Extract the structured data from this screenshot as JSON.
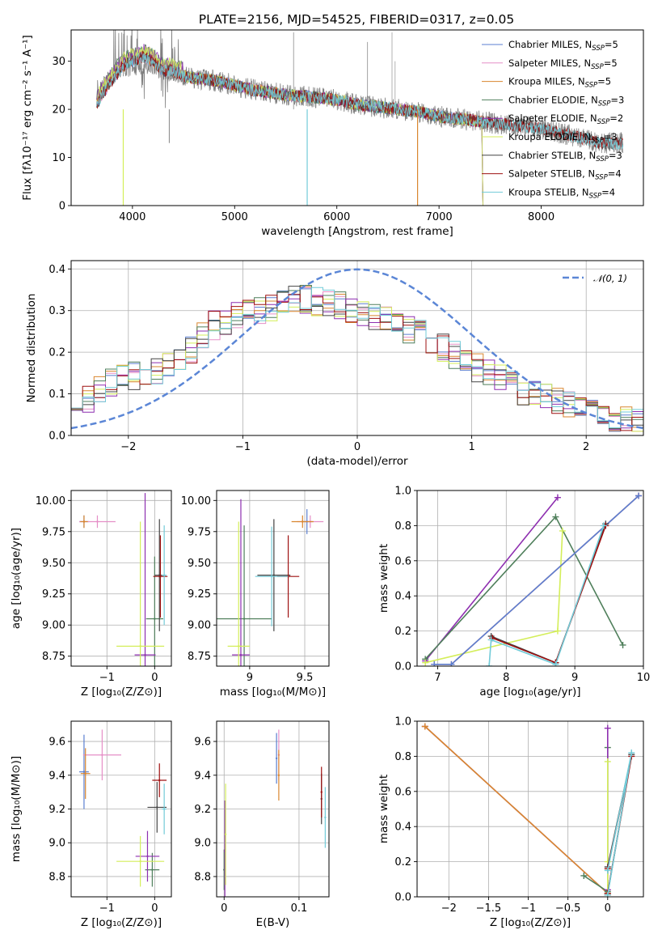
{
  "figure_title": "PLATE=2156, MJD=54525, FIBERID=0317, z=0.05",
  "colors": {
    "Chabrier MILES": "#5b7fd0",
    "Salpeter MILES": "#e58fc7",
    "Kroupa MILES": "#d9862e",
    "Chabrier ELODIE": "#4f7f5b",
    "Salpeter ELODIE": "#8e2fb0",
    "Kroupa ELODIE": "#d4ee5a",
    "Chabrier STELIB": "#444444",
    "Salpeter STELIB": "#9e1010",
    "Kroupa STELIB": "#72cbd8"
  },
  "chart_data": [
    {
      "id": "spectrum",
      "type": "line",
      "xlabel": "wavelength [Angstrom, rest frame]",
      "ylabel": "Flux [fλ10⁻¹⁷ erg cm⁻² s⁻¹ A⁻¹]",
      "xlim": [
        3400,
        9000
      ],
      "ylim": [
        0,
        36.5
      ],
      "xticks": [
        4000,
        5000,
        6000,
        7000,
        8000
      ],
      "yticks": [
        0,
        10,
        20,
        30
      ],
      "grid": false,
      "legend": [
        "Chabrier MILES, N_SSP=5",
        "Salpeter MILES, N_SSP=5",
        "Kroupa MILES, N_SSP=5",
        "Chabrier ELODIE, N_SSP=3",
        "Salpeter ELODIE, N_SSP=2",
        "Kroupa ELODIE, N_SSP=3",
        "Chabrier STELIB, N_SSP=3",
        "Salpeter STELIB, N_SSP=4",
        "Kroupa STELIB, N_SSP=4"
      ],
      "legend_location": "upper right",
      "data_continuum": {
        "x": [
          3650,
          3700,
          3800,
          3900,
          4000,
          4100,
          4200,
          4300,
          4400,
          4500,
          4600,
          4800,
          5000,
          5200,
          5500,
          5800,
          6000,
          6200,
          6400,
          6600,
          6800,
          7000,
          7200,
          7400,
          7600,
          7800,
          8000,
          8200,
          8400,
          8600,
          8800
        ],
        "y": [
          22,
          24,
          27,
          29,
          29,
          29.5,
          29.5,
          28,
          28,
          27,
          26.5,
          26,
          25,
          24,
          23,
          22.5,
          22,
          21,
          20.5,
          20,
          19.5,
          18.5,
          18,
          17.5,
          17,
          16.5,
          16,
          15,
          14,
          13,
          13
        ]
      },
      "model_continuum": {
        "x": [
          3650,
          3700,
          3800,
          3900,
          4000,
          4100,
          4200,
          4300,
          4400,
          4500,
          4600,
          4800,
          5000,
          5200,
          5500,
          5800,
          6000,
          6200,
          6400,
          6600,
          6800,
          7000,
          7200,
          7400
        ],
        "y": [
          21,
          23,
          26,
          29,
          30,
          31,
          30,
          28,
          28,
          27,
          26.5,
          26,
          25,
          24,
          23,
          22.5,
          22,
          21,
          20.5,
          20,
          19.5,
          18.5,
          18,
          17.5
        ]
      }
    },
    {
      "id": "residuals",
      "type": "histogram",
      "xlabel": "(data-model)/error",
      "ylabel": "Normed distribution",
      "xlim": [
        -2.5,
        2.5
      ],
      "ylim": [
        0,
        0.42
      ],
      "xticks": [
        -2,
        -1,
        0,
        1,
        2
      ],
      "yticks": [
        0.0,
        0.1,
        0.2,
        0.3,
        0.4
      ],
      "grid": true,
      "bin_edges_step": 0.1,
      "envelope": {
        "x": [
          -2.45,
          -2.2,
          -2.0,
          -1.8,
          -1.5,
          -1.3,
          -1.0,
          -0.8,
          -0.5,
          -0.3,
          0.0,
          0.3,
          0.6,
          0.8,
          1.0,
          1.3,
          1.5,
          1.8,
          2.0,
          2.3,
          2.45
        ],
        "y": [
          0.07,
          0.12,
          0.14,
          0.15,
          0.19,
          0.26,
          0.29,
          0.3,
          0.33,
          0.32,
          0.3,
          0.27,
          0.24,
          0.2,
          0.17,
          0.13,
          0.1,
          0.08,
          0.06,
          0.04,
          0.035
        ]
      },
      "reference_curve": {
        "name": "𝒩(0, 1)",
        "mean": 0,
        "sigma": 1,
        "style": "dashed"
      },
      "legend_location": "upper right"
    },
    {
      "id": "age-vs-Z",
      "type": "scatter",
      "xlabel": "Z [log₁₀(Z/Z⊙)]",
      "ylabel": "age  [log₁₀(age/yr)]",
      "xlim": [
        -1.75,
        0.35
      ],
      "ylim": [
        8.67,
        10.08
      ],
      "xticks": [
        -1,
        0
      ],
      "yticks": [
        8.75,
        9.0,
        9.25,
        9.5,
        9.75,
        10.0
      ],
      "grid": true,
      "points": [
        {
          "model": "Chabrier MILES",
          "x": -1.48,
          "y": 9.83,
          "xerr": 0.1,
          "yerr": 0.05
        },
        {
          "model": "Salpeter MILES",
          "x": -1.2,
          "y": 9.83,
          "xerr": 0.38,
          "yerr": 0.05
        },
        {
          "model": "Kroupa MILES",
          "x": -1.48,
          "y": 9.83,
          "xerr": 0.08,
          "yerr": 0.05
        },
        {
          "model": "Chabrier ELODIE",
          "x": 0.0,
          "y": 9.05,
          "xerr": 0.18,
          "yerr": 0.5
        },
        {
          "model": "Salpeter ELODIE",
          "x": -0.2,
          "y": 8.76,
          "xerr": 0.22,
          "yerr": 1.3
        },
        {
          "model": "Kroupa ELODIE",
          "x": -0.3,
          "y": 8.83,
          "xerr": 0.5,
          "yerr": 1.0
        },
        {
          "model": "Chabrier STELIB",
          "x": 0.1,
          "y": 9.4,
          "xerr": 0.1,
          "yerr": 0.45
        },
        {
          "model": "Salpeter STELIB",
          "x": 0.12,
          "y": 9.39,
          "xerr": 0.15,
          "yerr": 0.33
        },
        {
          "model": "Kroupa STELIB",
          "x": 0.2,
          "y": 9.4,
          "xerr": 0.05,
          "yerr": 0.4
        }
      ]
    },
    {
      "id": "age-vs-mass",
      "type": "scatter",
      "xlabel": "mass [log₁₀(M/M⊙)]",
      "ylabel": "",
      "xlim": [
        8.7,
        9.72
      ],
      "ylim": [
        8.67,
        10.08
      ],
      "xticks": [
        9.0,
        9.5
      ],
      "yticks": [
        8.75,
        9.0,
        9.25,
        9.5,
        9.75,
        10.0
      ],
      "grid": true,
      "points": [
        {
          "model": "Chabrier MILES",
          "x": 9.52,
          "y": 9.83,
          "xerr": 0.05,
          "yerr": 0.1
        },
        {
          "model": "Salpeter MILES",
          "x": 9.55,
          "y": 9.83,
          "xerr": 0.12,
          "yerr": 0.05
        },
        {
          "model": "Kroupa MILES",
          "x": 9.48,
          "y": 9.83,
          "xerr": 0.1,
          "yerr": 0.05
        },
        {
          "model": "Chabrier ELODIE",
          "x": 8.95,
          "y": 9.05,
          "xerr": 0.25,
          "yerr": 0.75
        },
        {
          "model": "Salpeter ELODIE",
          "x": 8.92,
          "y": 8.76,
          "xerr": 0.08,
          "yerr": 1.25
        },
        {
          "model": "Kroupa ELODIE",
          "x": 8.9,
          "y": 8.83,
          "xerr": 0.1,
          "yerr": 1.0
        },
        {
          "model": "Chabrier STELIB",
          "x": 9.22,
          "y": 9.4,
          "xerr": 0.15,
          "yerr": 0.45
        },
        {
          "model": "Salpeter STELIB",
          "x": 9.35,
          "y": 9.39,
          "xerr": 0.1,
          "yerr": 0.33
        },
        {
          "model": "Kroupa STELIB",
          "x": 9.2,
          "y": 9.39,
          "xerr": 0.15,
          "yerr": 0.4
        }
      ]
    },
    {
      "id": "weight-vs-age",
      "type": "line",
      "xlabel": "age  [log₁₀(age/yr)]",
      "ylabel": "mass weight",
      "xlim": [
        6.7,
        10.0
      ],
      "ylim": [
        0,
        1.0
      ],
      "xticks": [
        7,
        8,
        9,
        10
      ],
      "yticks": [
        0.0,
        0.2,
        0.4,
        0.6,
        0.8,
        1.0
      ],
      "grid": true,
      "series": [
        {
          "model": "Salpeter ELODIE",
          "x": [
            6.82,
            8.75
          ],
          "y": [
            0.03,
            0.96
          ]
        },
        {
          "model": "Chabrier ELODIE",
          "x": [
            6.82,
            8.72,
            9.7
          ],
          "y": [
            0.04,
            0.85,
            0.12
          ]
        },
        {
          "model": "Kroupa ELODIE",
          "x": [
            6.82,
            8.75,
            8.82
          ],
          "y": [
            0.02,
            0.2,
            0.77
          ]
        },
        {
          "model": "Kroupa MILES",
          "x": [
            6.95,
            7.2,
            9.93
          ],
          "y": [
            0.01,
            0.01,
            0.97
          ]
        },
        {
          "model": "Salpeter MILES",
          "x": [
            6.95,
            7.2,
            9.93
          ],
          "y": [
            0.01,
            0.01,
            0.97
          ]
        },
        {
          "model": "Chabrier MILES",
          "x": [
            6.95,
            7.2,
            9.93
          ],
          "y": [
            0.01,
            0.01,
            0.97
          ]
        },
        {
          "model": "Chabrier STELIB",
          "x": [
            7.78,
            8.72,
            9.45
          ],
          "y": [
            0.17,
            0.02,
            0.81
          ]
        },
        {
          "model": "Salpeter STELIB",
          "x": [
            7.8,
            8.72,
            9.45
          ],
          "y": [
            0.16,
            0.02,
            0.8
          ]
        },
        {
          "model": "Kroupa STELIB",
          "x": [
            7.75,
            7.78,
            8.72,
            9.42
          ],
          "y": [
            0.0,
            0.15,
            0.01,
            0.8
          ]
        }
      ]
    },
    {
      "id": "mass-vs-Z",
      "type": "scatter",
      "xlabel": "Z [log₁₀(Z/Z⊙)]",
      "ylabel": "mass [log₁₀(M/M⊙)]",
      "xlim": [
        -1.75,
        0.35
      ],
      "ylim": [
        8.68,
        9.72
      ],
      "xticks": [
        -1,
        0
      ],
      "yticks": [
        8.8,
        9.0,
        9.2,
        9.4,
        9.6
      ],
      "grid": true,
      "points": [
        {
          "model": "Chabrier MILES",
          "x": -1.48,
          "y": 9.42,
          "xerr": 0.1,
          "yerr": 0.22
        },
        {
          "model": "Salpeter MILES",
          "x": -1.1,
          "y": 9.52,
          "xerr": 0.4,
          "yerr": 0.15
        },
        {
          "model": "Kroupa MILES",
          "x": -1.45,
          "y": 9.41,
          "xerr": 0.1,
          "yerr": 0.15
        },
        {
          "model": "Chabrier ELODIE",
          "x": -0.05,
          "y": 8.84,
          "xerr": 0.15,
          "yerr": 0.1
        },
        {
          "model": "Salpeter ELODIE",
          "x": -0.15,
          "y": 8.92,
          "xerr": 0.25,
          "yerr": 0.15
        },
        {
          "model": "Kroupa ELODIE",
          "x": -0.3,
          "y": 8.89,
          "xerr": 0.5,
          "yerr": 0.15
        },
        {
          "model": "Chabrier STELIB",
          "x": 0.05,
          "y": 9.21,
          "xerr": 0.2,
          "yerr": 0.15
        },
        {
          "model": "Salpeter STELIB",
          "x": 0.1,
          "y": 9.37,
          "xerr": 0.15,
          "yerr": 0.1
        },
        {
          "model": "Kroupa STELIB",
          "x": 0.2,
          "y": 9.2,
          "xerr": 0.05,
          "yerr": 0.15
        }
      ]
    },
    {
      "id": "mass-vs-ebv",
      "type": "scatter",
      "xlabel": "E(B-V)",
      "ylabel": "",
      "xlim": [
        -0.01,
        0.14
      ],
      "ylim": [
        8.68,
        9.72
      ],
      "xticks": [
        0.0,
        0.1
      ],
      "yticks": [
        8.8,
        9.0,
        9.2,
        9.4,
        9.6
      ],
      "grid": true,
      "points": [
        {
          "model": "Chabrier MILES",
          "x": 0.07,
          "y": 9.5,
          "yerr": 0.15
        },
        {
          "model": "Salpeter MILES",
          "x": 0.073,
          "y": 9.52,
          "yerr": 0.15
        },
        {
          "model": "Kroupa MILES",
          "x": 0.073,
          "y": 9.4,
          "yerr": 0.15
        },
        {
          "model": "Chabrier ELODIE",
          "x": 0.0,
          "y": 8.84,
          "yerr": 0.12
        },
        {
          "model": "Salpeter ELODIE",
          "x": 0.001,
          "y": 8.95,
          "yerr": 0.3
        },
        {
          "model": "Kroupa ELODIE",
          "x": 0.002,
          "y": 9.05,
          "yerr": 0.3
        },
        {
          "model": "Chabrier STELIB",
          "x": 0.13,
          "y": 9.26,
          "yerr": 0.15
        },
        {
          "model": "Salpeter STELIB",
          "x": 0.13,
          "y": 9.3,
          "yerr": 0.15
        },
        {
          "model": "Kroupa STELIB",
          "x": 0.135,
          "y": 9.15,
          "yerr": 0.18
        }
      ]
    },
    {
      "id": "weight-vs-Z",
      "type": "line",
      "xlabel": "Z [log₁₀(Z/Z⊙)]",
      "ylabel": "mass weight",
      "xlim": [
        -2.4,
        0.45
      ],
      "ylim": [
        0,
        1.0
      ],
      "xticks": [
        -2.0,
        -1.5,
        -1.0,
        -0.5,
        0.0
      ],
      "yticks": [
        0.0,
        0.2,
        0.4,
        0.6,
        0.8,
        1.0
      ],
      "grid": true,
      "series": [
        {
          "model": "Chabrier MILES",
          "x": [
            -2.3,
            0.0,
            0.0
          ],
          "y": [
            0.97,
            0.02,
            0.01
          ]
        },
        {
          "model": "Salpeter MILES",
          "x": [
            -2.3,
            0.0,
            0.0
          ],
          "y": [
            0.97,
            0.02,
            0.01
          ]
        },
        {
          "model": "Kroupa MILES",
          "x": [
            -2.3,
            0.0,
            0.0
          ],
          "y": [
            0.97,
            0.02,
            0.01
          ]
        },
        {
          "model": "Chabrier ELODIE",
          "x": [
            -0.3,
            0.0,
            0.0
          ],
          "y": [
            0.12,
            0.03,
            0.85
          ]
        },
        {
          "model": "Salpeter ELODIE",
          "x": [
            0.0,
            0.0
          ],
          "y": [
            0.04,
            0.96
          ]
        },
        {
          "model": "Kroupa ELODIE",
          "x": [
            0.0,
            0.0,
            0.0
          ],
          "y": [
            0.02,
            0.2,
            0.77
          ]
        },
        {
          "model": "Chabrier STELIB",
          "x": [
            0.0,
            0.3,
            0.0
          ],
          "y": [
            0.17,
            0.81,
            0.02
          ]
        },
        {
          "model": "Salpeter STELIB",
          "x": [
            0.0,
            0.3,
            0.0
          ],
          "y": [
            0.16,
            0.8,
            0.02
          ]
        },
        {
          "model": "Kroupa STELIB",
          "x": [
            0.0,
            0.3,
            0.0
          ],
          "y": [
            0.15,
            0.82,
            0.01
          ]
        }
      ]
    }
  ]
}
